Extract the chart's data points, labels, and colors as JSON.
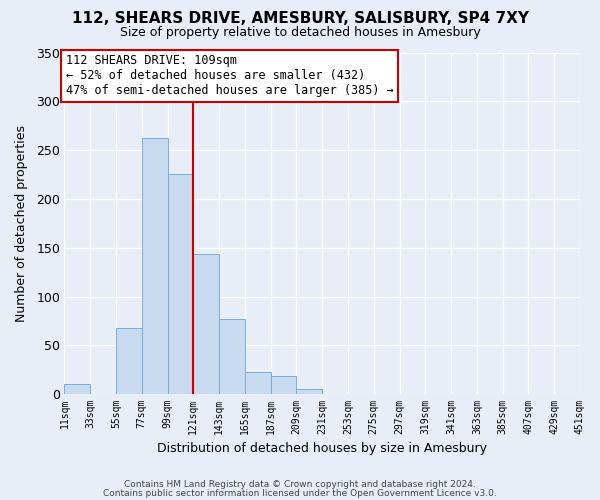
{
  "title": "112, SHEARS DRIVE, AMESBURY, SALISBURY, SP4 7XY",
  "subtitle": "Size of property relative to detached houses in Amesbury",
  "xlabel": "Distribution of detached houses by size in Amesbury",
  "ylabel": "Number of detached properties",
  "bin_labels": [
    "11sqm",
    "33sqm",
    "55sqm",
    "77sqm",
    "99sqm",
    "121sqm",
    "143sqm",
    "165sqm",
    "187sqm",
    "209sqm",
    "231sqm",
    "253sqm",
    "275sqm",
    "297sqm",
    "319sqm",
    "341sqm",
    "363sqm",
    "385sqm",
    "407sqm",
    "429sqm",
    "451sqm"
  ],
  "bar_heights": [
    10,
    0,
    68,
    262,
    226,
    144,
    77,
    23,
    19,
    5,
    0,
    0,
    0,
    0,
    0,
    0,
    0,
    0,
    0,
    0
  ],
  "bar_color": "#c8daf0",
  "bar_edge_color": "#7aadd4",
  "annotation_title": "112 SHEARS DRIVE: 109sqm",
  "annotation_line1": "← 52% of detached houses are smaller (432)",
  "annotation_line2": "47% of semi-detached houses are larger (385) →",
  "vline_color": "#cc0000",
  "ylim": [
    0,
    350
  ],
  "yticks": [
    0,
    50,
    100,
    150,
    200,
    250,
    300,
    350
  ],
  "footer1": "Contains HM Land Registry data © Crown copyright and database right 2024.",
  "footer2": "Contains public sector information licensed under the Open Government Licence v3.0.",
  "background_color": "#e8eef8",
  "plot_bg_color": "#e8eef8",
  "grid_color": "#ffffff",
  "annotation_box_color": "white",
  "annotation_box_edge": "#cc0000"
}
